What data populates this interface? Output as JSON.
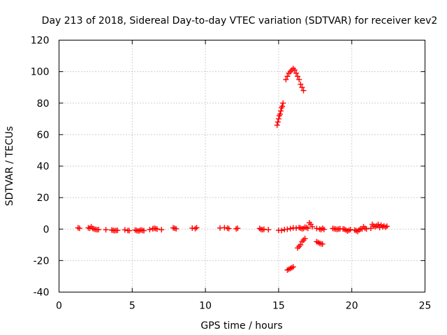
{
  "chart_data": {
    "type": "scatter",
    "title": "Day 213 of 2018, Sidereal Day-to-day VTEC variation (SDTVAR) for receiver kev2",
    "xlabel": "GPS time / hours",
    "ylabel": "SDTVAR / TECUs",
    "xlim": [
      0,
      25
    ],
    "ylim": [
      -40,
      120
    ],
    "xticks": [
      0,
      5,
      10,
      15,
      20,
      25
    ],
    "yticks": [
      -40,
      -20,
      0,
      20,
      40,
      60,
      80,
      100,
      120
    ],
    "xtick_labels": [
      "0",
      "5",
      "10",
      "15",
      "20",
      "25"
    ],
    "ytick_labels": [
      "-40",
      "-20",
      "0",
      "20",
      "40",
      "60",
      "80",
      "100",
      "120"
    ],
    "grid": true,
    "marker": "+",
    "color": "#ff0000",
    "series": [
      {
        "name": "kev2",
        "points": [
          [
            1.3,
            0.8
          ],
          [
            1.4,
            0.5
          ],
          [
            2.0,
            0.8
          ],
          [
            2.1,
            0.5
          ],
          [
            2.2,
            1.5
          ],
          [
            2.3,
            0.4
          ],
          [
            2.4,
            0.0
          ],
          [
            2.5,
            -0.2
          ],
          [
            2.6,
            -0.4
          ],
          [
            2.7,
            -0.3
          ],
          [
            3.2,
            -0.4
          ],
          [
            3.6,
            -0.6
          ],
          [
            3.7,
            -0.8
          ],
          [
            3.8,
            -1.0
          ],
          [
            3.9,
            -0.9
          ],
          [
            4.0,
            -0.8
          ],
          [
            4.5,
            -0.5
          ],
          [
            4.7,
            -0.9
          ],
          [
            4.8,
            -1.0
          ],
          [
            5.2,
            -0.6
          ],
          [
            5.3,
            -0.9
          ],
          [
            5.4,
            -1.2
          ],
          [
            5.5,
            -1.0
          ],
          [
            5.6,
            -0.5
          ],
          [
            5.7,
            -0.9
          ],
          [
            5.8,
            -1.0
          ],
          [
            6.2,
            -0.3
          ],
          [
            6.4,
            0.2
          ],
          [
            6.5,
            0.5
          ],
          [
            6.6,
            0.3
          ],
          [
            6.7,
            0.0
          ],
          [
            7.0,
            -0.4
          ],
          [
            7.8,
            0.8
          ],
          [
            7.9,
            0.5
          ],
          [
            8.0,
            0.2
          ],
          [
            9.1,
            0.6
          ],
          [
            9.3,
            0.3
          ],
          [
            9.4,
            0.9
          ],
          [
            11.0,
            0.7
          ],
          [
            11.3,
            0.9
          ],
          [
            11.5,
            0.6
          ],
          [
            11.6,
            0.3
          ],
          [
            12.1,
            0.2
          ],
          [
            12.2,
            0.5
          ],
          [
            13.7,
            0.4
          ],
          [
            13.8,
            -0.2
          ],
          [
            13.9,
            -0.4
          ],
          [
            14.0,
            -0.1
          ],
          [
            14.3,
            -0.4
          ],
          [
            14.9,
            66
          ],
          [
            14.95,
            68
          ],
          [
            15.0,
            70
          ],
          [
            15.05,
            72
          ],
          [
            15.1,
            73
          ],
          [
            15.15,
            75
          ],
          [
            15.2,
            77
          ],
          [
            15.25,
            78
          ],
          [
            15.3,
            80
          ],
          [
            15.5,
            95
          ],
          [
            15.6,
            97
          ],
          [
            15.7,
            99
          ],
          [
            15.8,
            100
          ],
          [
            15.9,
            101
          ],
          [
            16.0,
            102
          ],
          [
            16.1,
            101
          ],
          [
            16.2,
            99
          ],
          [
            16.3,
            97
          ],
          [
            16.4,
            95
          ],
          [
            16.5,
            92
          ],
          [
            16.6,
            90
          ],
          [
            16.7,
            88
          ],
          [
            15.0,
            -0.8
          ],
          [
            15.2,
            -0.9
          ],
          [
            15.4,
            -0.3
          ],
          [
            15.6,
            -0.1
          ],
          [
            15.8,
            0.3
          ],
          [
            16.0,
            0.8
          ],
          [
            16.2,
            0.6
          ],
          [
            16.4,
            1.0
          ],
          [
            16.5,
            0.6
          ],
          [
            16.6,
            0.2
          ],
          [
            16.7,
            0.4
          ],
          [
            16.8,
            1.2
          ],
          [
            16.9,
            1.0
          ],
          [
            17.0,
            0.5
          ],
          [
            17.1,
            4.0
          ],
          [
            17.2,
            3.0
          ],
          [
            17.3,
            1.5
          ],
          [
            17.6,
            0.4
          ],
          [
            17.8,
            0.0
          ],
          [
            17.9,
            -0.3
          ],
          [
            18.0,
            0.5
          ],
          [
            18.1,
            -0.2
          ],
          [
            15.6,
            -26
          ],
          [
            15.7,
            -25.5
          ],
          [
            15.8,
            -25
          ],
          [
            15.9,
            -24.5
          ],
          [
            16.0,
            -24
          ],
          [
            16.3,
            -12
          ],
          [
            16.4,
            -11
          ],
          [
            16.5,
            -10
          ],
          [
            16.6,
            -8
          ],
          [
            16.7,
            -7
          ],
          [
            16.8,
            -6
          ],
          [
            17.6,
            -8
          ],
          [
            17.7,
            -8.5
          ],
          [
            17.8,
            -9
          ],
          [
            17.9,
            -9.3
          ],
          [
            18.0,
            -9.5
          ],
          [
            18.7,
            0.4
          ],
          [
            18.8,
            0.2
          ],
          [
            18.9,
            0.0
          ],
          [
            19.0,
            -0.2
          ],
          [
            19.1,
            0.0
          ],
          [
            19.2,
            0.2
          ],
          [
            19.4,
            0.1
          ],
          [
            19.5,
            -0.1
          ],
          [
            19.6,
            -0.6
          ],
          [
            19.7,
            -1.2
          ],
          [
            19.8,
            -0.8
          ],
          [
            19.9,
            -0.3
          ],
          [
            20.2,
            -0.6
          ],
          [
            20.3,
            -1.0
          ],
          [
            20.4,
            -1.5
          ],
          [
            20.5,
            -0.5
          ],
          [
            20.6,
            0.2
          ],
          [
            20.7,
            0.0
          ],
          [
            20.8,
            1.5
          ],
          [
            20.9,
            0.5
          ],
          [
            21.0,
            0.1
          ],
          [
            21.3,
            0.5
          ],
          [
            21.4,
            3.0
          ],
          [
            21.5,
            2.0
          ],
          [
            21.6,
            1.5
          ],
          [
            21.7,
            2.0
          ],
          [
            21.8,
            3.0
          ],
          [
            21.9,
            1.0
          ],
          [
            22.0,
            2.5
          ],
          [
            22.1,
            1.5
          ],
          [
            22.2,
            2.0
          ],
          [
            22.3,
            1.2
          ],
          [
            22.4,
            1.8
          ]
        ]
      }
    ]
  }
}
